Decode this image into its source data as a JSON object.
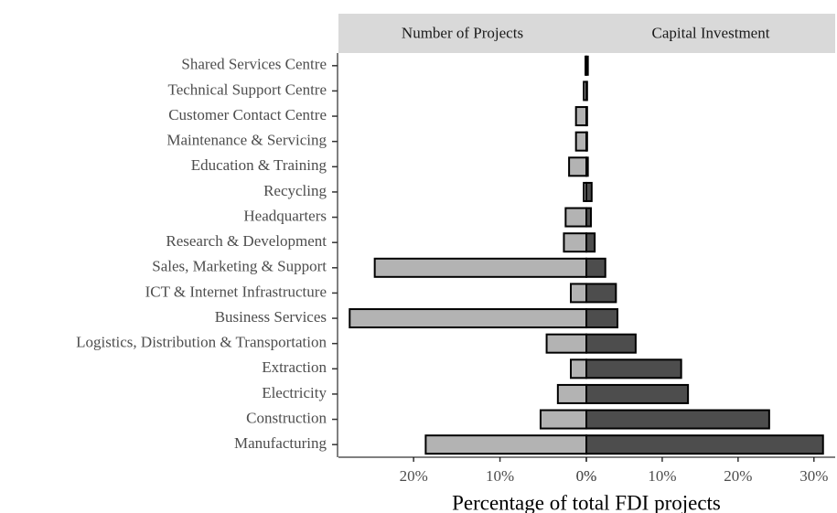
{
  "chart_data": {
    "type": "bar",
    "x_label": "Percentage of total FDI projects",
    "categories": [
      "Shared Services Centre",
      "Technical Support Centre",
      "Customer Contact Centre",
      "Maintenance & Servicing",
      "Education & Training",
      "Recycling",
      "Headquarters",
      "Research & Development",
      "Sales, Marketing & Support",
      "ICT & Internet Infrastructure",
      "Business Services",
      "Logistics, Distribution & Transportation",
      "Extraction",
      "Electricity",
      "Construction",
      "Manufacturing"
    ],
    "series": [
      {
        "name": "Number of Projects",
        "color": "#b3b3b3",
        "values": [
          0.1,
          0.3,
          1.2,
          1.2,
          2.0,
          0.3,
          2.4,
          2.6,
          24.5,
          1.8,
          27.4,
          4.6,
          1.8,
          3.3,
          5.3,
          18.6
        ],
        "xlim": [
          28.7,
          0
        ],
        "xticks": [
          {
            "value": 20,
            "label": "20%"
          },
          {
            "value": 10,
            "label": "10%"
          },
          {
            "value": 0,
            "label": "0%"
          }
        ]
      },
      {
        "name": "Capital Investment",
        "color": "#4d4d4d",
        "values": [
          0.2,
          0.1,
          0.1,
          0.1,
          0.2,
          0.7,
          0.6,
          1.1,
          2.5,
          3.9,
          4.1,
          6.5,
          12.5,
          13.4,
          24.1,
          31.2
        ],
        "xlim": [
          0,
          32.8
        ],
        "xticks": [
          {
            "value": 0,
            "label": "0%"
          },
          {
            "value": 10,
            "label": "10%"
          },
          {
            "value": 20,
            "label": "20%"
          },
          {
            "value": 30,
            "label": "30%"
          }
        ]
      }
    ]
  }
}
